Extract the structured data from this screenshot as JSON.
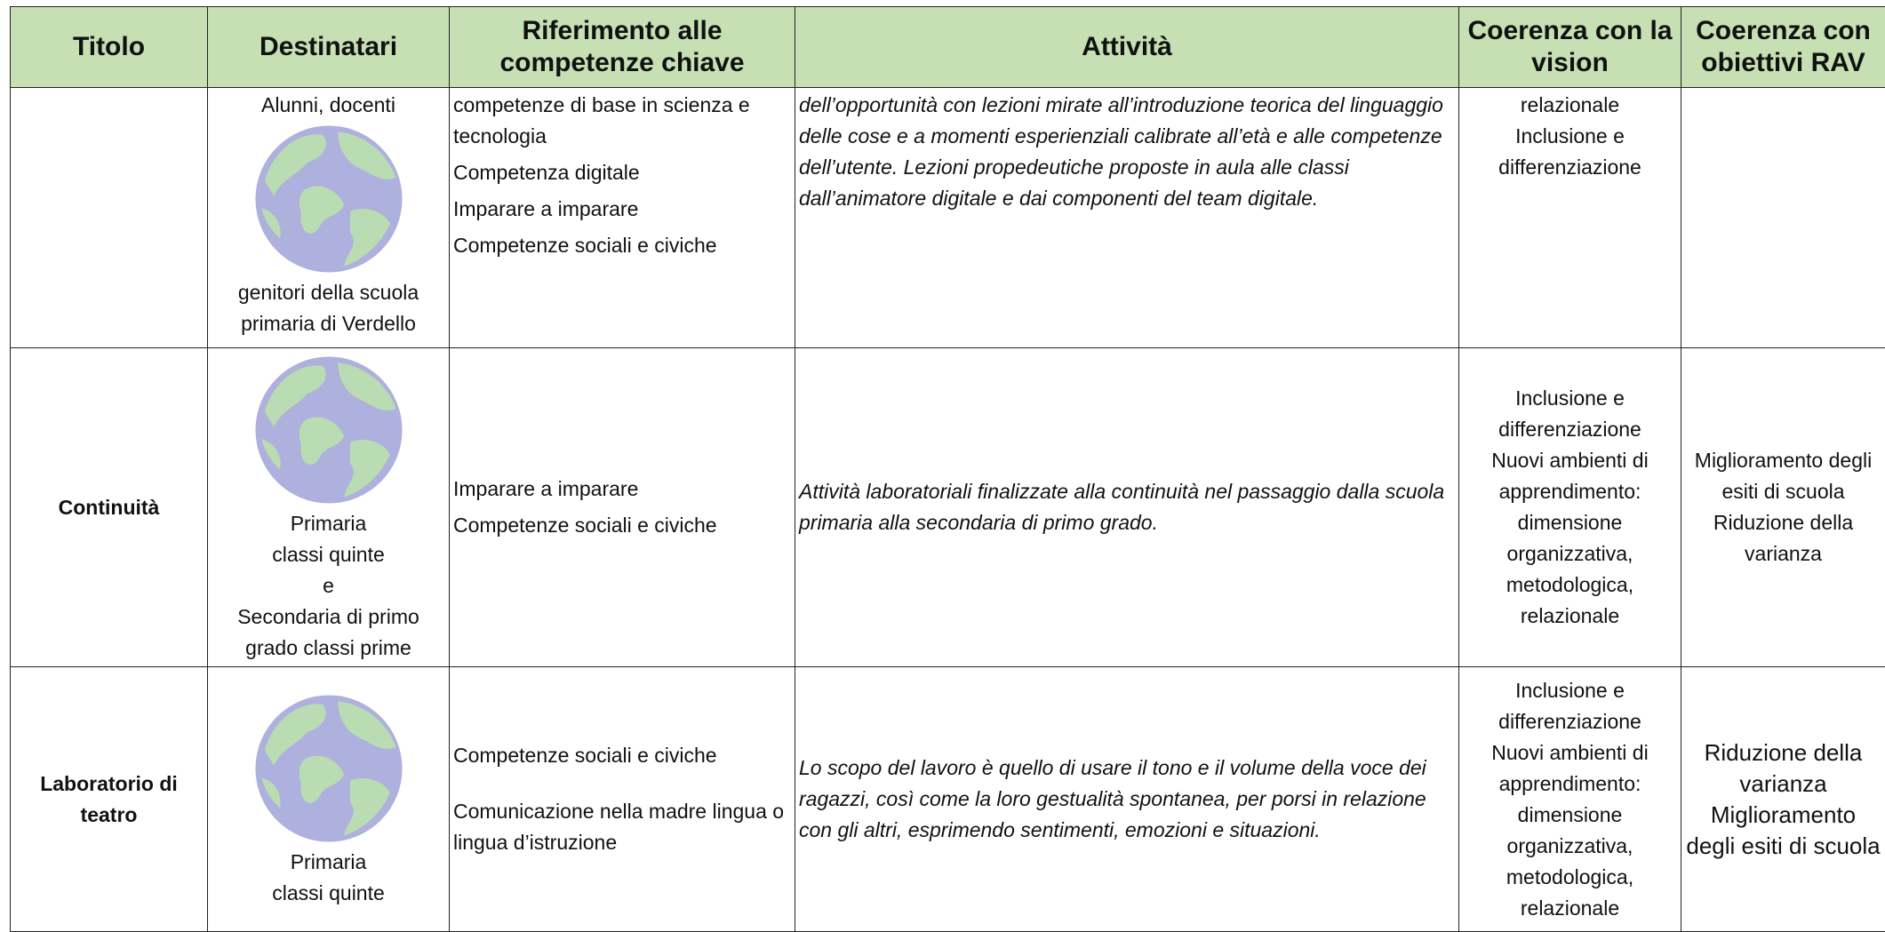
{
  "table": {
    "headers": [
      "Titolo",
      "Destinatari",
      "Riferimento alle competenze chiave",
      "Attività",
      "Coerenza con la vision",
      "Coerenza con obiettivi RAV"
    ],
    "rows": [
      {
        "destinatari_above": [
          "Alunni, docenti"
        ],
        "destinatari_below": [
          "genitori della scuola primaria di Verdello"
        ],
        "competenze": [
          "competenze di base in scienza e tecnologia",
          "Competenza digitale",
          "Imparare a imparare",
          "Competenze sociali e civiche"
        ],
        "attivita": [
          "dell’opportunità con lezioni mirate all’introduzione teorica del linguaggio delle cose  e a momenti esperienziali calibrate all’età e alle competenze dell’utente. Lezioni propedeutiche proposte in aula alle classi dall’animatore digitale e dai componenti del team digitale."
        ],
        "vision": [
          "relazionale",
          "Inclusione e differenziazione"
        ]
      },
      {
        "titolo": "Continuità",
        "destinatari_below": [
          "Primaria",
          "classi quinte",
          "e",
          "Secondaria di primo grado classi prime"
        ],
        "competenze": [
          "Imparare a imparare",
          "Competenze sociali e civiche"
        ],
        "attivita": [
          "Attività laboratoriali finalizzate alla continuità nel passaggio dalla scuola primaria alla secondaria di primo grado."
        ],
        "vision": [
          "Inclusione e differenziazione",
          "Nuovi ambienti di apprendimento: dimensione organizzativa, metodologica, relazionale"
        ],
        "rav": [
          "Miglioramento degli esiti di scuola",
          "Riduzione della varianza"
        ]
      },
      {
        "titolo": "Laboratorio di teatro",
        "destinatari_below": [
          "Primaria",
          "classi quinte"
        ],
        "competenze": [
          "Competenze sociali e civiche",
          "Comunicazione nella madre lingua o lingua d’istruzione"
        ],
        "attivita": [
          "Lo scopo del lavoro è quello di usare il tono e il volume della voce dei ragazzi, così come la loro gestualità spontanea, per porsi in relazione con gli altri, esprimendo sentimenti, emozioni e situazioni."
        ],
        "vision": [
          "Inclusione e differenziazione",
          "Nuovi ambienti di apprendimento: dimensione organizzativa, metodologica, relazionale"
        ],
        "rav": [
          "Riduzione della varianza",
          "Miglioramento degli esiti di scuola"
        ]
      }
    ]
  }
}
